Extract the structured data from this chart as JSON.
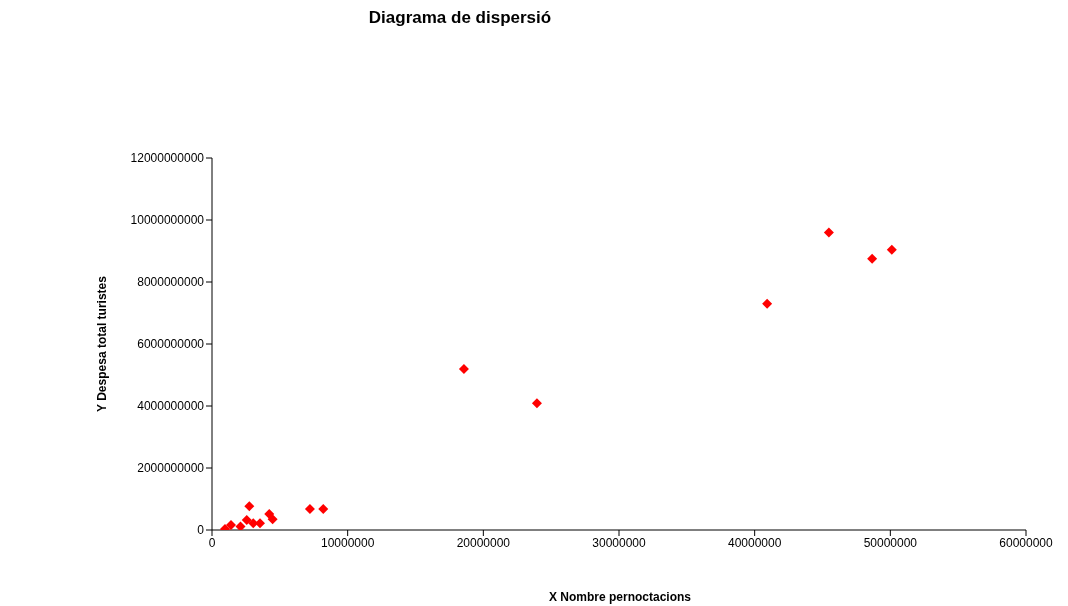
{
  "chart_data": {
    "type": "scatter",
    "title": "Diagrama de dispersió",
    "xlabel": "X Nombre pernoctacions",
    "ylabel": "Y Despesa total turistes",
    "x": [
      960000,
      1400000,
      2100000,
      2750000,
      2560000,
      3040000,
      3540000,
      4220000,
      4470000,
      7220000,
      8200000,
      18570000,
      23950000,
      40920000,
      45470000,
      48660000,
      50110000
    ],
    "values": [
      30000000,
      160000000,
      110000000,
      770000000,
      320000000,
      220000000,
      220000000,
      520000000,
      350000000,
      680000000,
      680000000,
      5190000000,
      4090000000,
      7300000000,
      9600000000,
      8750000000,
      9040000000
    ],
    "color": "#ff0000",
    "marker": "diamond",
    "xlim": [
      0,
      60000000
    ],
    "xticks": [
      0,
      10000000,
      20000000,
      30000000,
      40000000,
      50000000,
      60000000
    ],
    "ylim": [
      0,
      12000000000
    ],
    "yticks": [
      0,
      2000000000,
      4000000000,
      6000000000,
      8000000000,
      10000000000,
      12000000000
    ],
    "grid": false,
    "legend": false
  }
}
